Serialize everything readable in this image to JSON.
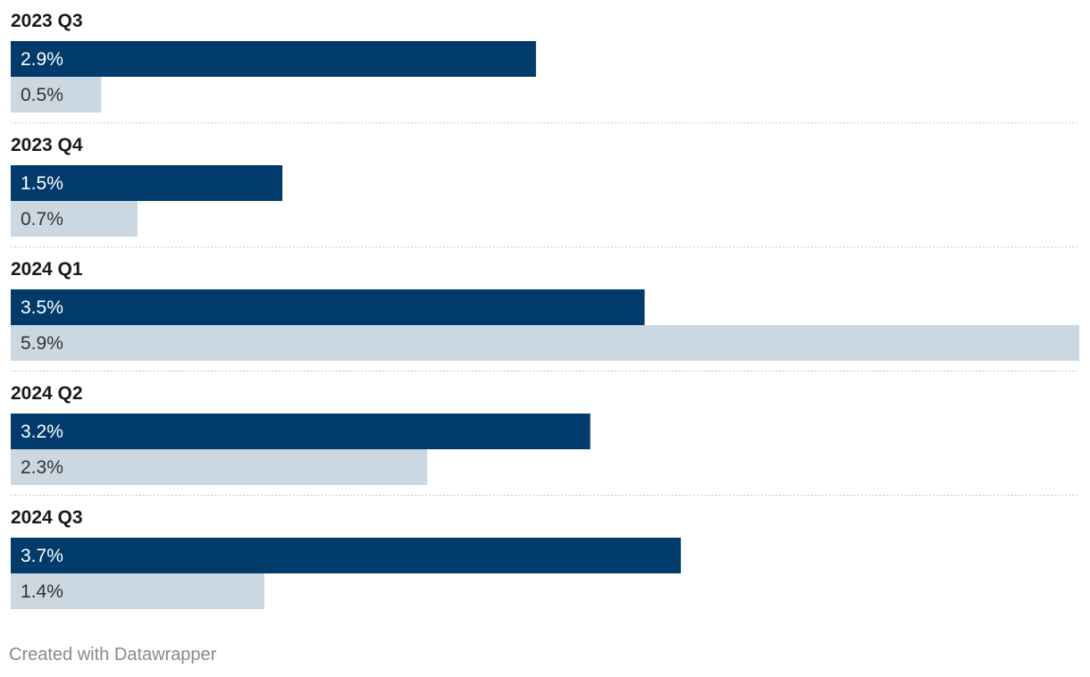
{
  "chart_data": {
    "type": "bar",
    "orientation": "horizontal",
    "grouped": true,
    "categories": [
      "2023 Q3",
      "2023 Q4",
      "2024 Q1",
      "2024 Q2",
      "2024 Q3"
    ],
    "series": [
      {
        "values": [
          2.9,
          1.5,
          3.5,
          3.2,
          3.7
        ],
        "labels": [
          "2.9%",
          "1.5%",
          "3.5%",
          "3.2%",
          "3.7%"
        ],
        "color": "#003b6b",
        "label_color": "#ffffff"
      },
      {
        "values": [
          0.5,
          0.7,
          5.9,
          2.3,
          1.4
        ],
        "labels": [
          "0.5%",
          "0.7%",
          "5.9%",
          "2.3%",
          "1.4%"
        ],
        "color": "#ccd8e1",
        "label_color": "#333333"
      }
    ],
    "xlim": [
      0,
      5.9
    ],
    "grid": false,
    "legend": "none",
    "separator_color": "#c8c8c8"
  },
  "footer": {
    "credit": "Created with Datawrapper"
  }
}
